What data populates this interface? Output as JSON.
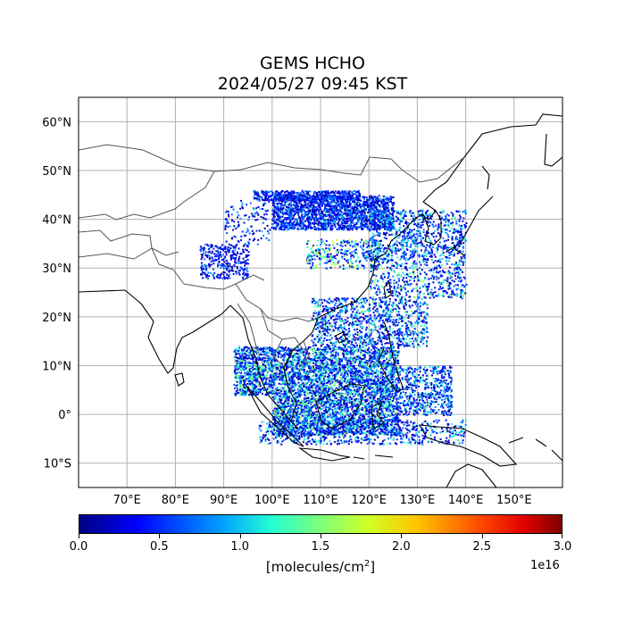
{
  "title_line1": "GEMS HCHO",
  "title_line2": "2024/05/27 09:45 KST",
  "map": {
    "lon_range": [
      60,
      160
    ],
    "lat_range": [
      -15,
      65
    ],
    "lon_ticks": [
      "70°E",
      "80°E",
      "90°E",
      "100°E",
      "110°E",
      "120°E",
      "130°E",
      "140°E",
      "150°E"
    ],
    "lat_ticks": [
      "60°N",
      "50°N",
      "40°N",
      "30°N",
      "20°N",
      "10°N",
      "0°",
      "10°S"
    ],
    "gridlines": true,
    "coastline_color": "#000000",
    "border_color": "#555555"
  },
  "colorbar": {
    "min": 0.0,
    "max": 3.0,
    "ticks": [
      "0.0",
      "0.5",
      "1.0",
      "1.5",
      "2.0",
      "2.5",
      "3.0"
    ],
    "exponent": "1e16",
    "units": "[molecules/cm",
    "units_sup": "2",
    "units_end": "]",
    "colormap": "jet"
  }
}
